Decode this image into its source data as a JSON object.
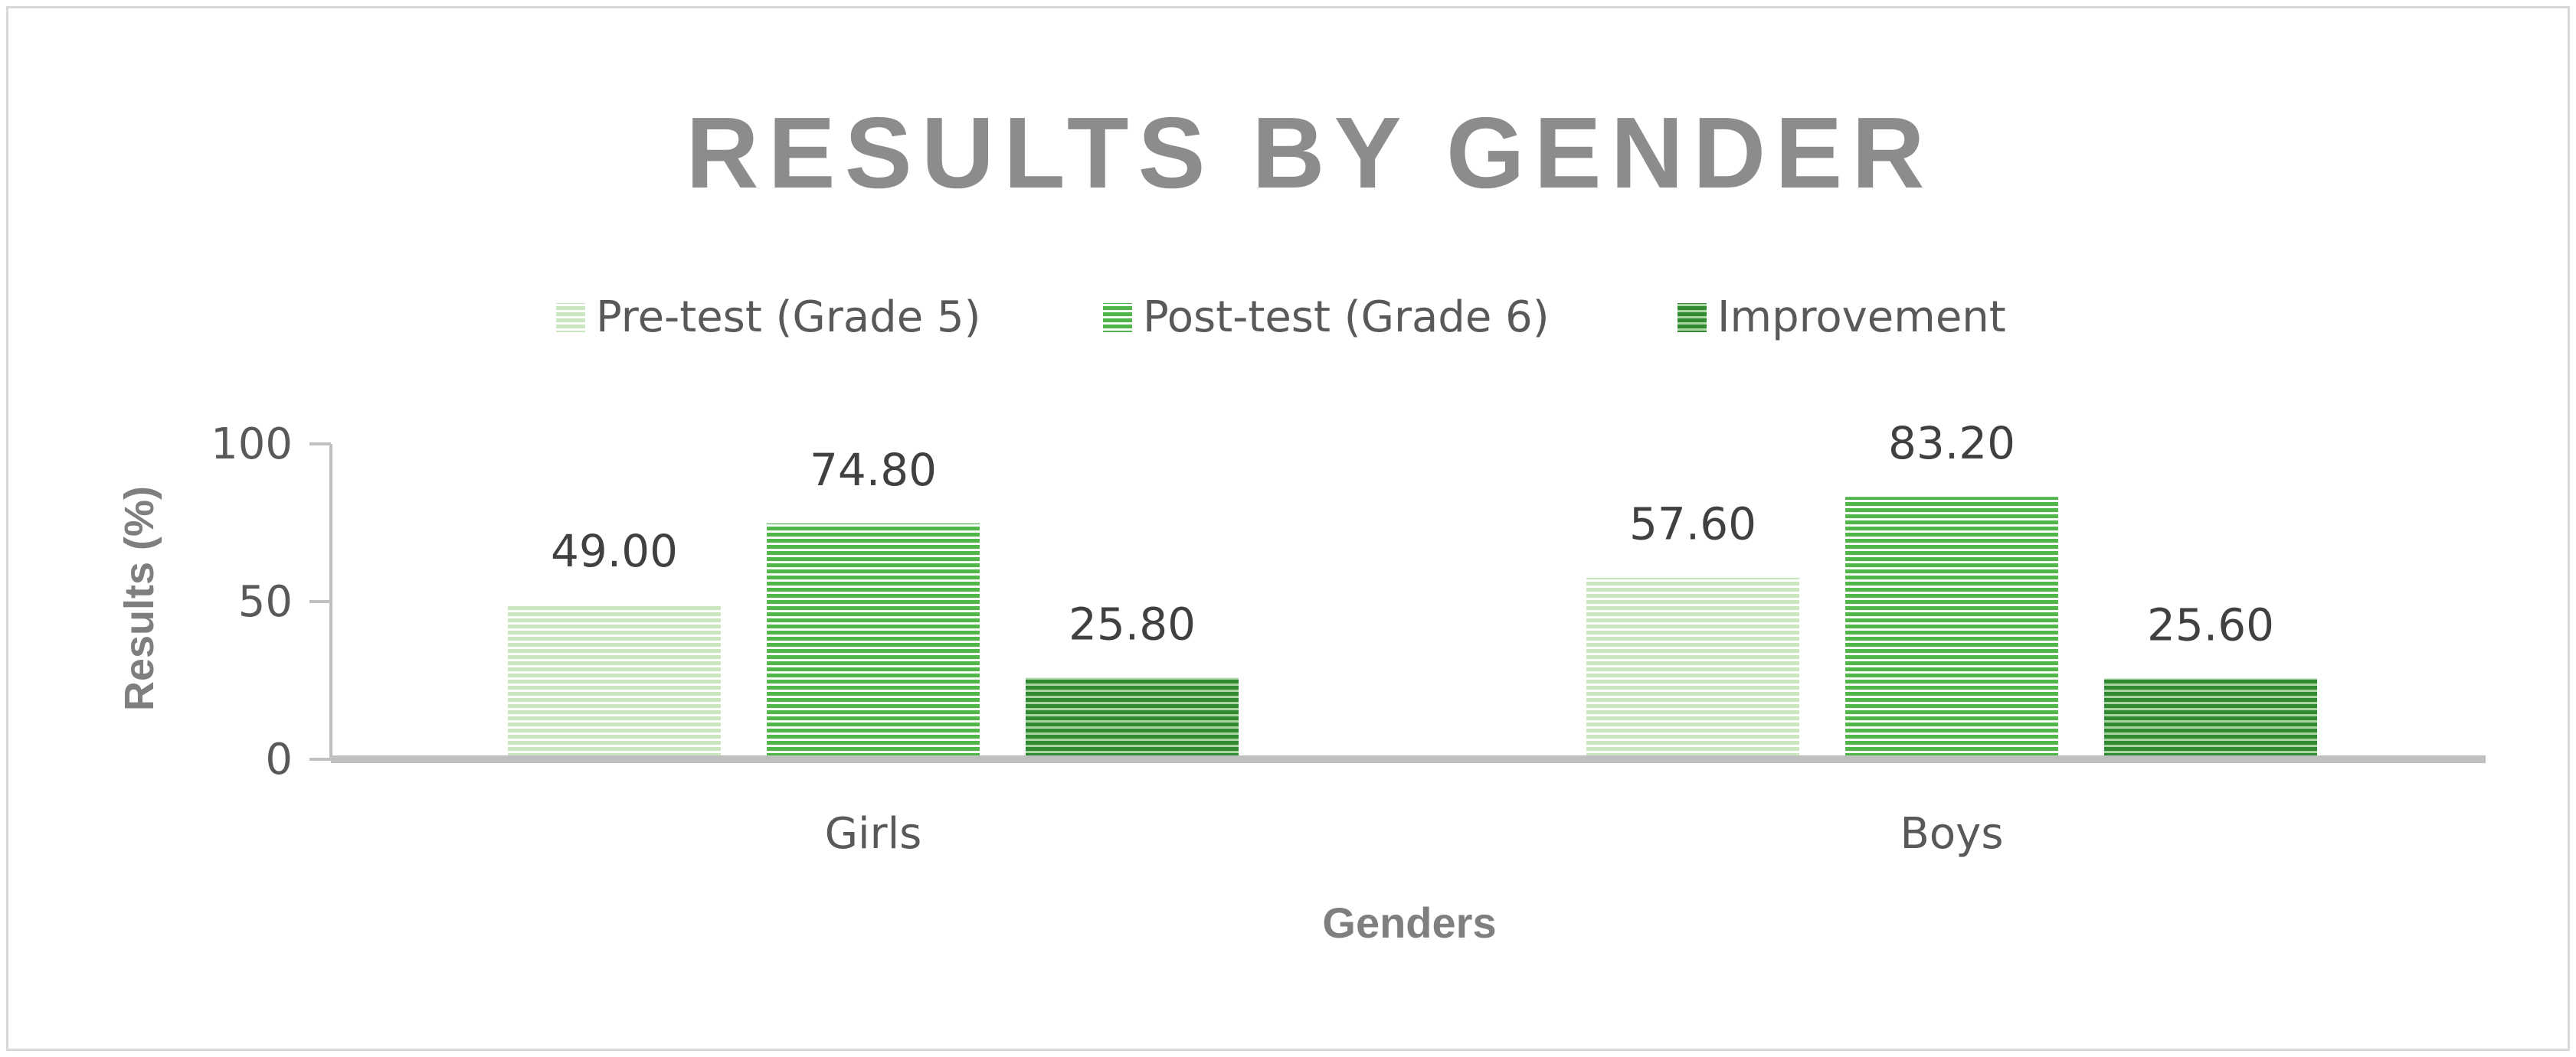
{
  "chart_data": {
    "type": "bar",
    "title": "RESULTS BY GENDER",
    "xlabel": "Genders",
    "ylabel": "Results (%)",
    "categories": [
      "Girls",
      "Boys"
    ],
    "ylim": [
      0,
      100
    ],
    "yticks": [
      0,
      50,
      100
    ],
    "legend_position": "top",
    "grid": false,
    "series": [
      {
        "name": "Pre-test (Grade 5)",
        "values": [
          49.0,
          57.6
        ],
        "labels": [
          "49.00",
          "57.60"
        ],
        "color": "#c9e6c1"
      },
      {
        "name": "Post-test (Grade 6)",
        "values": [
          74.8,
          83.2
        ],
        "labels": [
          "74.80",
          "83.20"
        ],
        "color": "#4fb64a"
      },
      {
        "name": "Improvement",
        "values": [
          25.8,
          25.6
        ],
        "labels": [
          "25.80",
          "25.60"
        ],
        "color": "#2f8a32"
      }
    ]
  }
}
